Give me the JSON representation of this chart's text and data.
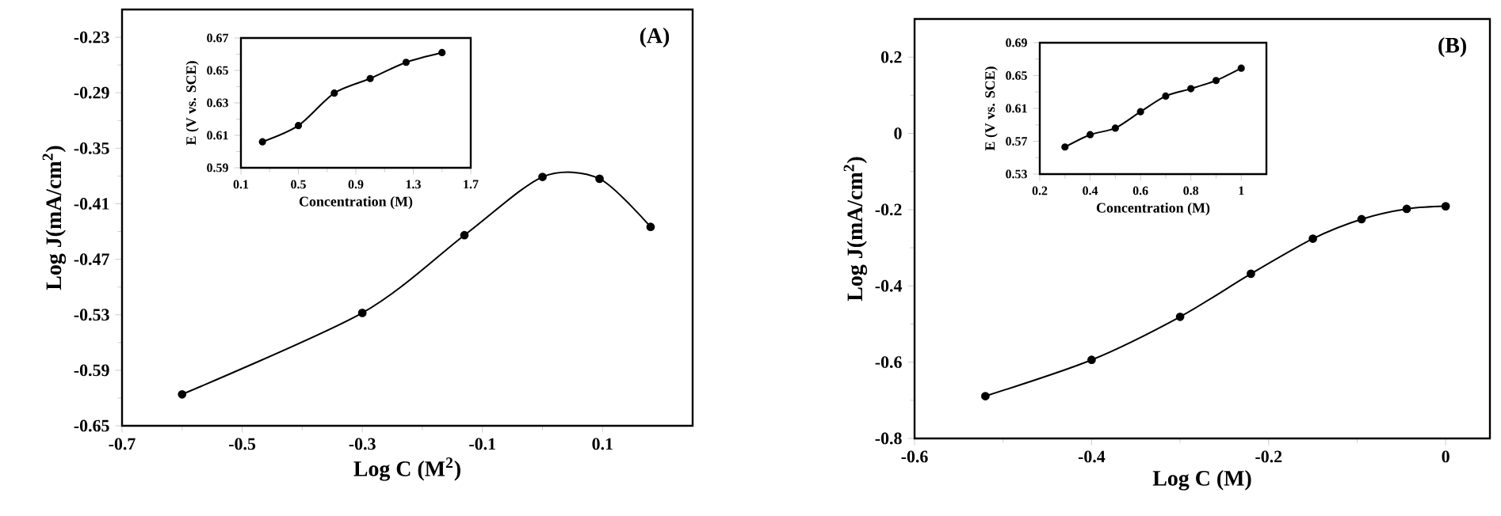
{
  "chart_data": [
    {
      "type": "line",
      "xlabel": "Log C (M$^{2}$)",
      "ylabel": "Log J(mA/cm$^{2}$)",
      "annotations": [
        "(A)"
      ],
      "marker": "circle",
      "line_style": "solid",
      "x": [
        -0.6,
        -0.3,
        -0.13,
        0.0,
        0.095,
        0.18
      ],
      "series": [
        {
          "color": "#000000",
          "values": [
            -0.616,
            -0.528,
            -0.444,
            -0.381,
            -0.383,
            -0.435
          ]
        }
      ],
      "xlim": [
        -0.7,
        0.25
      ],
      "ylim": [
        -0.65,
        -0.2
      ],
      "xticks": [
        -0.7,
        -0.5,
        -0.3,
        -0.1,
        0.1
      ],
      "yticks": [
        -0.65,
        -0.59,
        -0.53,
        -0.47,
        -0.41,
        -0.35,
        -0.29,
        -0.23
      ]
    },
    {
      "type": "line",
      "xlabel": "Concentration (M)",
      "ylabel": "E (V vs. SCE)",
      "marker": "circle",
      "line_style": "solid",
      "x": [
        0.25,
        0.5,
        0.75,
        1.0,
        1.25,
        1.5
      ],
      "series": [
        {
          "color": "#000000",
          "values": [
            0.606,
            0.616,
            0.636,
            0.645,
            0.655,
            0.661
          ]
        }
      ],
      "xlim": [
        0.1,
        1.7
      ],
      "ylim": [
        0.59,
        0.67
      ],
      "xticks": [
        0.1,
        0.5,
        0.9,
        1.3,
        1.7
      ],
      "yticks": [
        0.59,
        0.61,
        0.63,
        0.65,
        0.67
      ]
    },
    {
      "type": "line",
      "xlabel": "Log C (M)",
      "ylabel": "Log J(mA/cm$^{2}$)",
      "annotations": [
        "(B)"
      ],
      "marker": "circle",
      "line_style": "solid",
      "x": [
        -0.52,
        -0.4,
        -0.3,
        -0.22,
        -0.15,
        -0.095,
        -0.044,
        0.0
      ],
      "series": [
        {
          "color": "#000000",
          "values": [
            -0.689,
            -0.594,
            -0.481,
            -0.368,
            -0.276,
            -0.225,
            -0.198,
            -0.191
          ]
        }
      ],
      "xlim": [
        -0.6,
        0.05
      ],
      "ylim": [
        -0.8,
        0.3
      ],
      "xticks": [
        -0.6,
        -0.4,
        -0.2,
        0
      ],
      "yticks": [
        -0.8,
        -0.6,
        -0.4,
        -0.2,
        0,
        0.2
      ]
    },
    {
      "type": "line",
      "xlabel": "Concentration (M)",
      "ylabel": "E (V vs. SCE)",
      "marker": "circle",
      "line_style": "solid",
      "x": [
        0.3,
        0.4,
        0.5,
        0.6,
        0.7,
        0.8,
        0.9,
        1.0
      ],
      "series": [
        {
          "color": "#000000",
          "values": [
            0.563,
            0.578,
            0.586,
            0.606,
            0.625,
            0.634,
            0.644,
            0.659
          ]
        }
      ],
      "xlim": [
        0.2,
        1.1
      ],
      "ylim": [
        0.53,
        0.69
      ],
      "xticks": [
        0.2,
        0.4,
        0.6,
        0.8,
        1
      ],
      "yticks": [
        0.53,
        0.57,
        0.61,
        0.65,
        0.69
      ]
    }
  ]
}
